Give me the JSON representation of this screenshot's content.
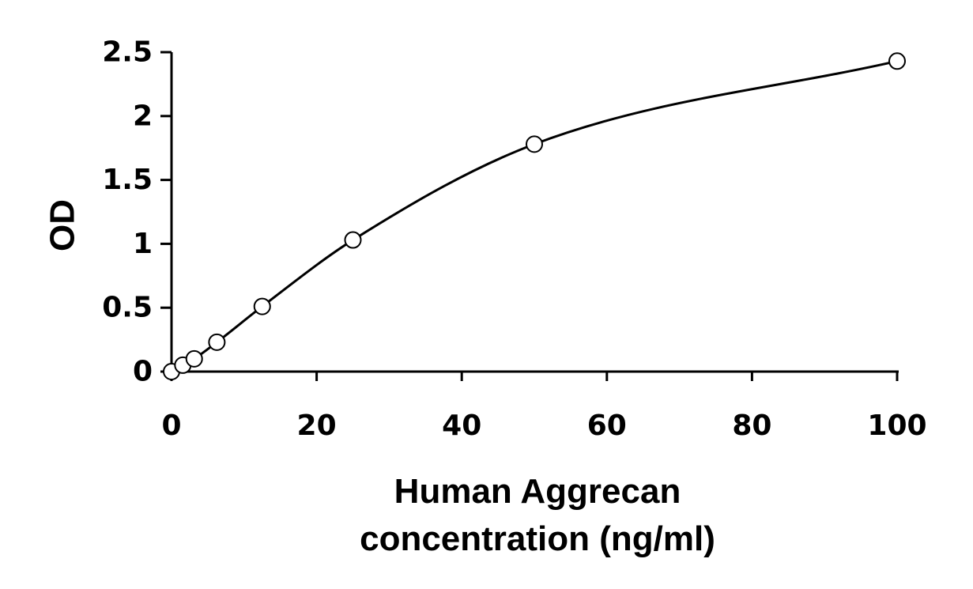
{
  "chart_data": {
    "type": "scatter",
    "title": "",
    "xlabel_lines": [
      "Human Aggrecan",
      "concentration (ng/ml)"
    ],
    "ylabel": "OD",
    "xlim": [
      0,
      100
    ],
    "ylim": [
      0,
      2.5
    ],
    "x_ticks": [
      0,
      20,
      40,
      60,
      80,
      100
    ],
    "x_tick_labels": [
      "0",
      "20",
      "40",
      "60",
      "80",
      "100"
    ],
    "y_ticks": [
      0,
      0.5,
      1,
      1.5,
      2,
      2.5
    ],
    "y_tick_labels": [
      "0",
      "0.5",
      "1",
      "1.5",
      "2",
      "2.5"
    ],
    "grid": false,
    "legend": "none",
    "points": {
      "x": [
        0,
        1.56,
        3.13,
        6.25,
        12.5,
        25,
        50,
        100
      ],
      "y": [
        0.0,
        0.05,
        0.1,
        0.23,
        0.51,
        1.03,
        1.78,
        2.43
      ]
    },
    "trendline": {
      "type": "smooth fit curve through points"
    },
    "colors": {
      "line": "#000000",
      "marker_fill": "#ffffff",
      "background": "#ffffff"
    }
  }
}
